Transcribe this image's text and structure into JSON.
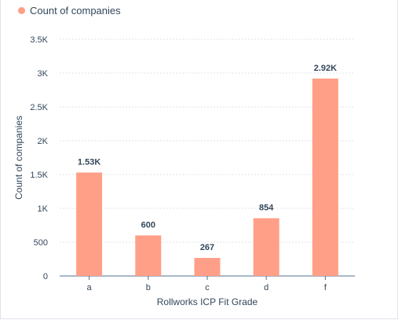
{
  "legend": {
    "label": "Count of companies",
    "color": "#ff9f87"
  },
  "colors": {
    "bar": "#ff9f87",
    "grid": "#dfe3eb",
    "axis": "#516f90",
    "text": "#33475b"
  },
  "chart_data": {
    "type": "bar",
    "categories": [
      "a",
      "b",
      "c",
      "d",
      "f"
    ],
    "series": [
      {
        "name": "Count of companies",
        "values": [
          1530,
          600,
          267,
          854,
          2920
        ]
      }
    ],
    "data_labels": [
      "1.53K",
      "600",
      "267",
      "854",
      "2.92K"
    ],
    "xlabel": "Rollworks ICP Fit Grade",
    "ylabel": "Count of companies",
    "ylim": [
      0,
      3500
    ],
    "yticks": [
      0,
      500,
      1000,
      1500,
      2000,
      2500,
      3000,
      3500
    ],
    "ytick_labels": [
      "0",
      "500",
      "1K",
      "1.5K",
      "2K",
      "2.5K",
      "3K",
      "3.5K"
    ],
    "grid": true,
    "legend_position": "top-left"
  }
}
